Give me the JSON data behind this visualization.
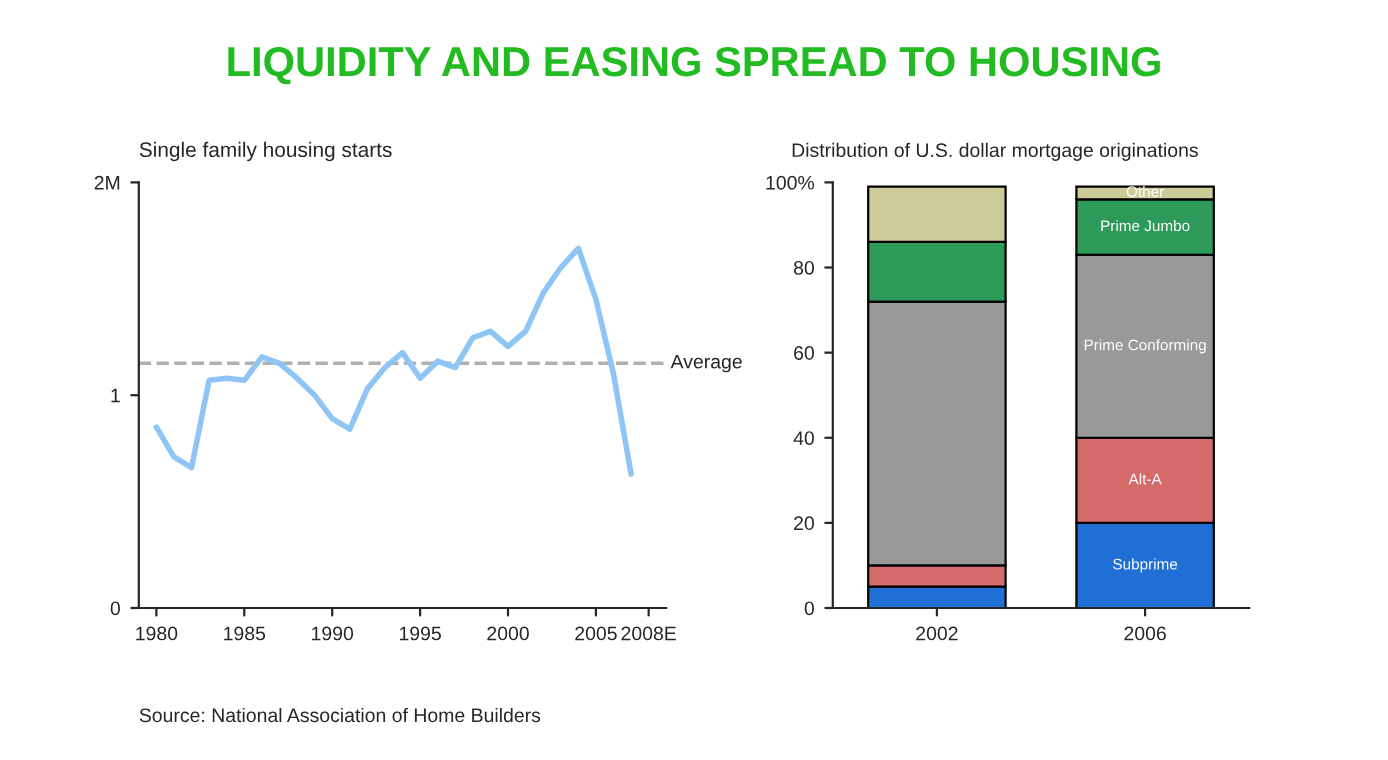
{
  "chart_data": [
    {
      "type": "line",
      "title": "LIQUIDITY AND EASING SPREAD TO HOUSING",
      "subtitle": "Single family housing starts",
      "x": [
        1980,
        1981,
        1982,
        1983,
        1984,
        1985,
        1986,
        1987,
        1988,
        1989,
        1990,
        1991,
        1992,
        1993,
        1994,
        1995,
        1996,
        1997,
        1998,
        1999,
        2000,
        2001,
        2002,
        2003,
        2004,
        2005,
        2006,
        2007
      ],
      "series": [
        {
          "color": "#8ec5f5",
          "values": [
            0.85,
            0.71,
            0.66,
            1.07,
            1.08,
            1.07,
            1.18,
            1.15,
            1.08,
            1.0,
            0.89,
            0.84,
            1.03,
            1.13,
            1.2,
            1.08,
            1.16,
            1.13,
            1.27,
            1.3,
            1.23,
            1.3,
            1.48,
            1.6,
            1.69,
            1.45,
            1.1,
            0.63
          ]
        }
      ],
      "xlim": [
        1979,
        2009
      ],
      "xticks": [
        1980,
        1985,
        1990,
        1995,
        2000,
        2005,
        {
          "value": 2008,
          "label": "2008E"
        }
      ],
      "ylim": [
        0,
        2
      ],
      "yticks": [
        0,
        1,
        {
          "value": 2,
          "label": "2M"
        }
      ],
      "ref_lines": [
        {
          "axis": "y",
          "value": 1.15,
          "label": "Average",
          "color": "#b0b0b0",
          "line_style": "dashed"
        }
      ],
      "grid": false,
      "marker": "none",
      "line_style": "solid",
      "annotations": [
        "Source: National Association of Home Builders"
      ]
    },
    {
      "type": "bar",
      "title": "Distribution of U.S. dollar mortgage originations",
      "stacked": true,
      "categories": [
        "2002",
        "2006"
      ],
      "series": [
        {
          "name": "Subprime",
          "color": "#1f6fd6",
          "values": [
            5,
            20
          ]
        },
        {
          "name": "Alt-A",
          "color": "#d46a6a",
          "values": [
            5,
            20
          ]
        },
        {
          "name": "Prime Conforming",
          "color": "#999999",
          "values": [
            62,
            43
          ]
        },
        {
          "name": "Prime Jumbo",
          "color": "#2e9a5a",
          "values": [
            14,
            13
          ]
        },
        {
          "name": "Other",
          "color": "#cccc99",
          "values": [
            13,
            3
          ]
        }
      ],
      "ylim": [
        0,
        100
      ],
      "yticks": [
        0,
        20,
        40,
        60,
        80,
        {
          "value": 100,
          "label": "100%"
        }
      ],
      "grid": false
    }
  ]
}
